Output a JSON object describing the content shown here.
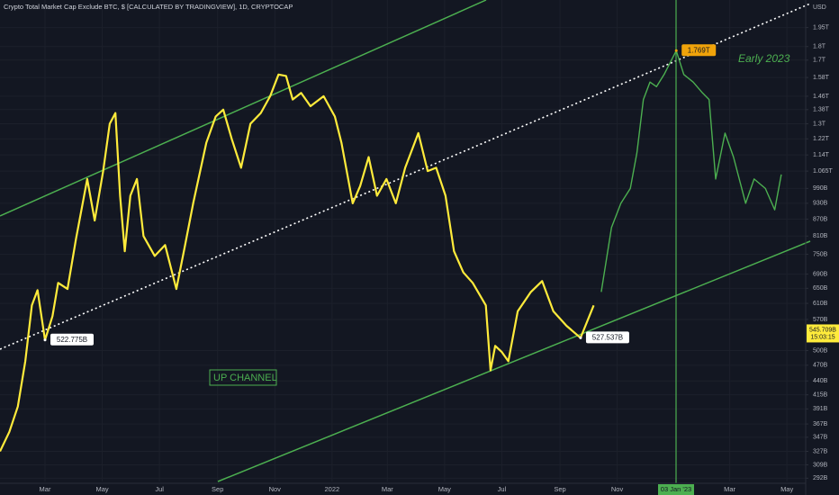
{
  "chart_data": {
    "type": "line",
    "title": "Crypto Total Market Cap Exclude BTC, $ [CALCULATED BY TRADINGVIEW], 1D, CRYPTOCAP",
    "y_label": "USD",
    "log_scale": true,
    "grid": true,
    "xlim": [
      "2021-01-12",
      "2023-05-21"
    ],
    "ylim": [
      288000000000.0,
      2190000000000.0
    ],
    "xticks": [
      {
        "value": "2021-03-01",
        "label": "Mar"
      },
      {
        "value": "2021-05-01",
        "label": "May"
      },
      {
        "value": "2021-07-01",
        "label": "Jul"
      },
      {
        "value": "2021-09-01",
        "label": "Sep"
      },
      {
        "value": "2021-11-01",
        "label": "Nov"
      },
      {
        "value": "2022-01-01",
        "label": "2022"
      },
      {
        "value": "2022-03-01",
        "label": "Mar"
      },
      {
        "value": "2022-05-01",
        "label": "May"
      },
      {
        "value": "2022-07-01",
        "label": "Jul"
      },
      {
        "value": "2022-09-01",
        "label": "Sep"
      },
      {
        "value": "2022-11-01",
        "label": "Nov"
      },
      {
        "value": "2023-03-01",
        "label": "Mar"
      },
      {
        "value": "2023-05-01",
        "label": "May"
      }
    ],
    "crosshair_label": "03 Jan '23",
    "yticks": [
      {
        "value": 1950000000000.0,
        "label": "1.95T"
      },
      {
        "value": 1800000000000.0,
        "label": "1.8T"
      },
      {
        "value": 1700000000000.0,
        "label": "1.7T"
      },
      {
        "value": 1580000000000.0,
        "label": "1.58T"
      },
      {
        "value": 1460000000000.0,
        "label": "1.46T"
      },
      {
        "value": 1380000000000.0,
        "label": "1.38T"
      },
      {
        "value": 1300000000000.0,
        "label": "1.3T"
      },
      {
        "value": 1220000000000.0,
        "label": "1.22T"
      },
      {
        "value": 1140000000000.0,
        "label": "1.14T"
      },
      {
        "value": 1065000000000.0,
        "label": "1.065T"
      },
      {
        "value": 990000000000.0,
        "label": "990B"
      },
      {
        "value": 930000000000.0,
        "label": "930B"
      },
      {
        "value": 870000000000.0,
        "label": "870B"
      },
      {
        "value": 810000000000.0,
        "label": "810B"
      },
      {
        "value": 750000000000.0,
        "label": "750B"
      },
      {
        "value": 690000000000.0,
        "label": "690B"
      },
      {
        "value": 650000000000.0,
        "label": "650B"
      },
      {
        "value": 610000000000.0,
        "label": "610B"
      },
      {
        "value": 570000000000.0,
        "label": "570B"
      },
      {
        "value": 500000000000.0,
        "label": "500B"
      },
      {
        "value": 470000000000.0,
        "label": "470B"
      },
      {
        "value": 440000000000.0,
        "label": "440B"
      },
      {
        "value": 415000000000.0,
        "label": "415B"
      },
      {
        "value": 391000000000.0,
        "label": "391B"
      },
      {
        "value": 367000000000.0,
        "label": "367B"
      },
      {
        "value": 347000000000.0,
        "label": "347B"
      },
      {
        "value": 327000000000.0,
        "label": "327B"
      },
      {
        "value": 309000000000.0,
        "label": "309B"
      },
      {
        "value": 292000000000.0,
        "label": "292B"
      }
    ],
    "series": [
      {
        "color": "#ffeb3b",
        "x": [
          "2021-01-12",
          "2021-01-22",
          "2021-01-31",
          "2021-02-08",
          "2021-02-15",
          "2021-02-21",
          "2021-03-01",
          "2021-03-09",
          "2021-03-15",
          "2021-03-25",
          "2021-04-03",
          "2021-04-15",
          "2021-04-23",
          "2021-05-02",
          "2021-05-09",
          "2021-05-15",
          "2021-05-20",
          "2021-05-25",
          "2021-05-31",
          "2021-06-07",
          "2021-06-14",
          "2021-06-26",
          "2021-07-07",
          "2021-07-19",
          "2021-07-28",
          "2021-08-06",
          "2021-08-20",
          "2021-08-30",
          "2021-09-07",
          "2021-09-16",
          "2021-09-26",
          "2021-10-06",
          "2021-10-17",
          "2021-10-27",
          "2021-11-05",
          "2021-11-13",
          "2021-11-20",
          "2021-11-29",
          "2021-12-09",
          "2021-12-23",
          "2022-01-04",
          "2022-01-11",
          "2022-01-23",
          "2022-01-31",
          "2022-02-09",
          "2022-02-18",
          "2022-02-28",
          "2022-03-10",
          "2022-03-20",
          "2022-04-03",
          "2022-04-13",
          "2022-04-22",
          "2022-05-02",
          "2022-05-11",
          "2022-05-21",
          "2022-05-31",
          "2022-06-14",
          "2022-06-19",
          "2022-06-24",
          "2022-07-01",
          "2022-07-08",
          "2022-07-18",
          "2022-08-01",
          "2022-08-13",
          "2022-08-25",
          "2022-09-08",
          "2022-09-23",
          "2022-10-07"
        ],
        "values": [
          327000000000.0,
          355000000000.0,
          395000000000.0,
          478000000000.0,
          605000000000.0,
          645000000000.0,
          522775000000,
          578000000000.0,
          665000000000.0,
          648000000000.0,
          800000000000.0,
          1030000000000.0,
          865000000000.0,
          1065000000000.0,
          1300000000000.0,
          1360000000000.0,
          960000000000.0,
          760000000000.0,
          960000000000.0,
          1030000000000.0,
          810000000000.0,
          745000000000.0,
          780000000000.0,
          648000000000.0,
          775000000000.0,
          930000000000.0,
          1200000000000.0,
          1340000000000.0,
          1380000000000.0,
          1220000000000.0,
          1080000000000.0,
          1300000000000.0,
          1360000000000.0,
          1460000000000.0,
          1600000000000.0,
          1590000000000.0,
          1440000000000.0,
          1480000000000.0,
          1400000000000.0,
          1460000000000.0,
          1340000000000.0,
          1200000000000.0,
          930000000000.0,
          1000000000000.0,
          1130000000000.0,
          960000000000.0,
          1030000000000.0,
          930000000000.0,
          1080000000000.0,
          1250000000000.0,
          1065000000000.0,
          1080000000000.0,
          960000000000.0,
          760000000000.0,
          695000000000.0,
          665000000000.0,
          605000000000.0,
          460000000000.0,
          510000000000.0,
          497000000000.0,
          478000000000.0,
          590000000000.0,
          640000000000.0,
          670000000000.0,
          590000000000.0,
          555000000000.0,
          527537000000,
          605000000000.0
        ]
      },
      {
        "color": "#4caf50",
        "x": [
          "2022-10-15",
          "2022-10-26",
          "2022-11-05",
          "2022-11-15",
          "2022-11-22",
          "2022-11-29",
          "2022-12-06",
          "2022-12-13",
          "2022-12-21",
          "2023-01-03",
          "2023-01-11",
          "2023-01-21",
          "2023-01-31",
          "2023-02-07",
          "2023-02-14",
          "2023-02-24",
          "2023-03-05",
          "2023-03-18",
          "2023-03-27",
          "2023-04-08",
          "2023-04-18",
          "2023-04-25"
        ],
        "values": [
          640000000000.0,
          840000000000.0,
          930000000000.0,
          990000000000.0,
          1150000000000.0,
          1440000000000.0,
          1550000000000.0,
          1520000000000.0,
          1600000000000.0,
          1769000000000,
          1600000000000.0,
          1550000000000.0,
          1480000000000.0,
          1440000000000.0,
          1030000000000.0,
          1250000000000.0,
          1130000000000.0,
          930000000000.0,
          1030000000000.0,
          990000000000.0,
          905000000000.0,
          1050000000000.0
        ]
      }
    ],
    "annotations": [
      {
        "x": "2021-03-01",
        "value": 522775000000,
        "label": "522.775B",
        "color": "#ffffff"
      },
      {
        "x": "2022-09-23",
        "value": 527537000000,
        "label": "527.537B",
        "color": "#ffffff"
      },
      {
        "x": "2023-01-03",
        "value": 1769000000000,
        "label": "1.769T",
        "color": "#f0a30a"
      }
    ],
    "current_price": {
      "value": 545709000000,
      "label": "545.709B",
      "color": "#ffeb3b"
    },
    "countdown": "15:03:15",
    "notes": [
      "Early 2023",
      "UP CHANNEL"
    ]
  }
}
